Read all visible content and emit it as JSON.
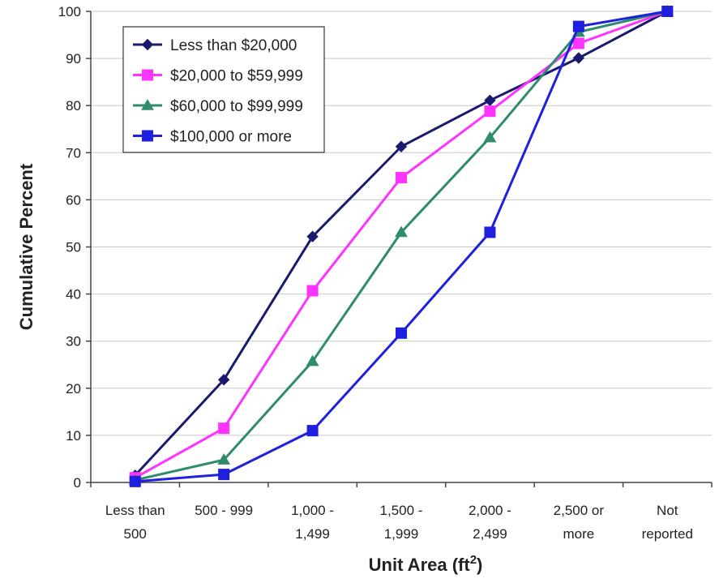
{
  "chart_data": {
    "type": "line",
    "title": "",
    "xlabel": "Unit Area (ft",
    "xlabel_superscript": "2",
    "xlabel_suffix": ")",
    "ylabel": "Cumulative Percent",
    "ylim": [
      0,
      100
    ],
    "yticks": [
      "0",
      "10",
      "20",
      "30",
      "40",
      "50",
      "60",
      "70",
      "80",
      "90",
      "100"
    ],
    "grid": "horizontal",
    "legend_position": "top-left",
    "categories": [
      [
        "Less than",
        "500"
      ],
      [
        "500 - 999"
      ],
      [
        "1,000 -",
        "1,499"
      ],
      [
        "1,500 -",
        "1,999"
      ],
      [
        "2,000 -",
        "2,499"
      ],
      [
        "2,500 or",
        "more"
      ],
      [
        "Not",
        "reported"
      ]
    ],
    "series": [
      {
        "name": "Less than $20,000",
        "color": "#1a1a6e",
        "marker": "diamond",
        "values": [
          1.5,
          21.8,
          52.2,
          71.3,
          81.1,
          90.1,
          100
        ]
      },
      {
        "name": "$20,000 to $59,999",
        "color": "#ff33ff",
        "marker": "square",
        "values": [
          1.0,
          11.5,
          40.7,
          64.7,
          78.8,
          93.2,
          100
        ]
      },
      {
        "name": "$60,000 to $99,999",
        "color": "#2e8b6e",
        "marker": "triangle",
        "values": [
          0.5,
          4.8,
          25.7,
          53.1,
          73.2,
          95.6,
          100
        ]
      },
      {
        "name": "$100,000 or more",
        "color": "#1f1fe0",
        "marker": "square",
        "values": [
          0.2,
          1.7,
          11.0,
          31.7,
          53.1,
          96.8,
          100
        ]
      }
    ]
  }
}
